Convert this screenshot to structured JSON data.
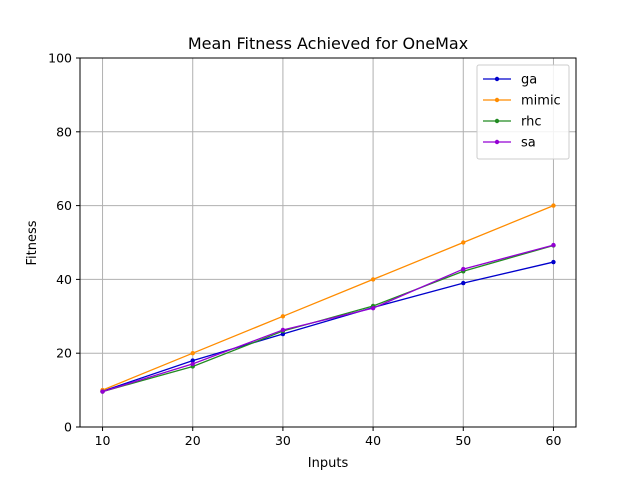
{
  "chart_data": {
    "type": "line",
    "title": "Mean Fitness Achieved for OneMax",
    "xlabel": "Inputs",
    "ylabel": "Fitness",
    "x": [
      10,
      20,
      30,
      40,
      50,
      60
    ],
    "xlim": [
      7.5,
      62.5
    ],
    "ylim": [
      0,
      100
    ],
    "xticks": [
      "10",
      "20",
      "30",
      "40",
      "50",
      "60"
    ],
    "yticks": [
      "0",
      "20",
      "40",
      "60",
      "80",
      "100"
    ],
    "grid": true,
    "legend_position": "top-right",
    "series": [
      {
        "name": "ga",
        "color": "#0000cc",
        "values": [
          9.7,
          18.0,
          25.2,
          32.4,
          39.0,
          44.7
        ]
      },
      {
        "name": "mimic",
        "color": "#ff8c00",
        "values": [
          10.0,
          20.0,
          30.0,
          40.0,
          50.0,
          60.0
        ]
      },
      {
        "name": "rhc",
        "color": "#228b22",
        "values": [
          9.6,
          16.4,
          26.0,
          32.8,
          42.2,
          49.2
        ]
      },
      {
        "name": "sa",
        "color": "#9400d3",
        "values": [
          9.6,
          17.1,
          26.3,
          32.2,
          42.8,
          49.3
        ]
      }
    ]
  }
}
